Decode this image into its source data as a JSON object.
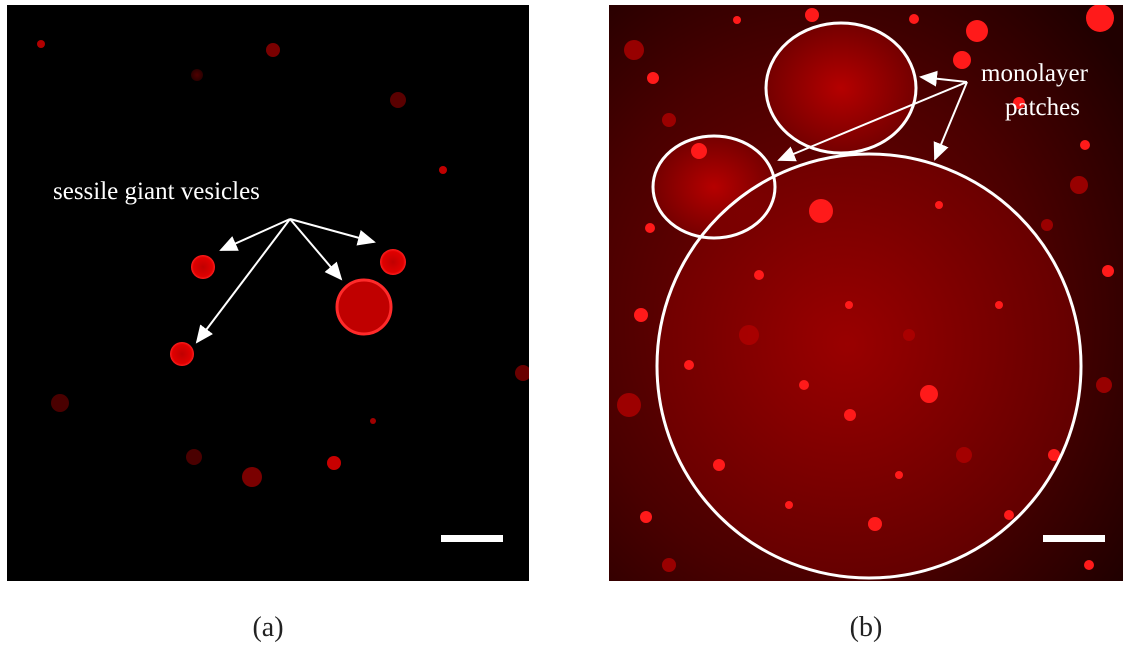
{
  "panels": [
    {
      "id": "a",
      "caption": "(a)",
      "annotation": "sessile giant vesicles"
    },
    {
      "id": "b",
      "caption": "(b)",
      "annotation_line1": "monolayer",
      "annotation_line2": "patches"
    }
  ],
  "colors": {
    "vesicle": "#e00000",
    "background_a": "#000000",
    "background_b": "#3a0000",
    "annotation": "#ffffff"
  }
}
